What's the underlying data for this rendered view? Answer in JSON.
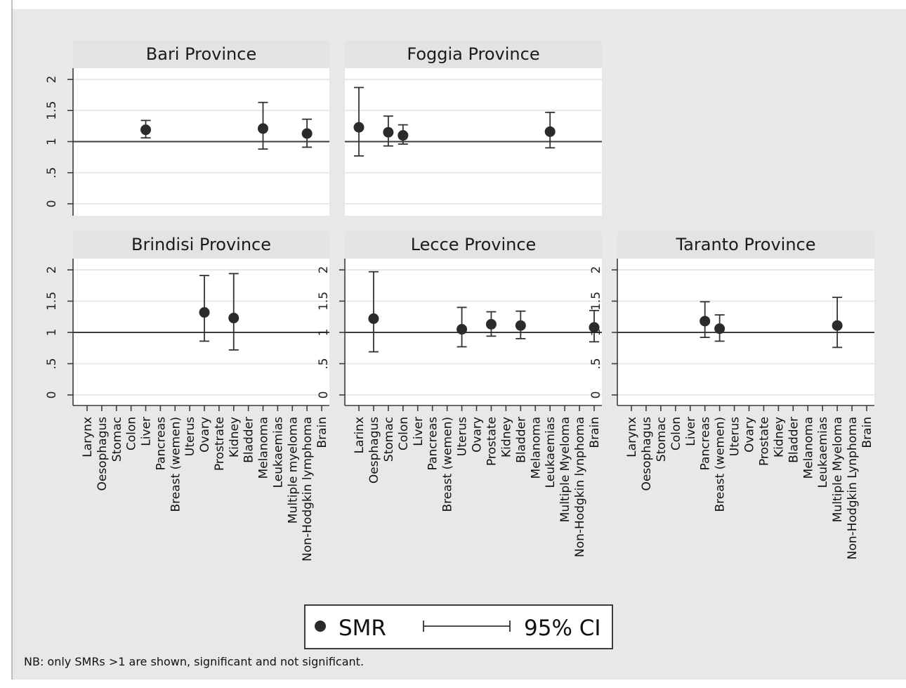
{
  "colors": {
    "background": "#e8e8e8",
    "panel": "#ffffff",
    "strip": "#e3e3e3",
    "marker": "#2b2b2b",
    "line": "#3c3c3c"
  },
  "chart_data": {
    "type": "scatter",
    "subtype": "point estimates with 95% confidence intervals, small multiples",
    "reference_line": 1,
    "ylim": [
      0,
      2.2
    ],
    "yticks": [
      0,
      0.5,
      1,
      1.5,
      2
    ],
    "ytick_labels": [
      "0",
      ".5",
      "1",
      "1.5",
      "2"
    ],
    "grid": true,
    "panels": [
      {
        "title": "Bari Province",
        "categories": [
          "Larynx",
          "Oesophagus",
          "Stomac",
          "Colon",
          "Liver",
          "Pancreas",
          "Breast (wemen)",
          "Uterus",
          "Ovary",
          "Prostrate",
          "Kidney",
          "Bladder",
          "Melanoma",
          "Leukaemias",
          "Multiple myeloma",
          "Non-Hodgkin lymphoma",
          "Brain"
        ],
        "points": [
          {
            "category": "Liver",
            "smr": 1.19,
            "lower": 1.06,
            "upper": 1.34
          },
          {
            "category": "Melanoma",
            "smr": 1.21,
            "lower": 0.88,
            "upper": 1.63
          },
          {
            "category": "Non-Hodgkin lymphoma",
            "smr": 1.13,
            "lower": 0.91,
            "upper": 1.36
          }
        ]
      },
      {
        "title": "Foggia Province",
        "categories": [
          "Larinx",
          "Oesphagus",
          "Stomac",
          "Colon",
          "Liver",
          "Pancreas",
          "Breast (wemen)",
          "Uterus",
          "Ovary",
          "Prostate",
          "Kidney",
          "Bladder",
          "Melanoma",
          "Leukaemias",
          "Multiple Myeloma",
          "Non-Hodgkin lynphoma",
          "Brain"
        ],
        "points": [
          {
            "category": "Larinx",
            "smr": 1.23,
            "lower": 0.77,
            "upper": 1.87
          },
          {
            "category": "Stomac",
            "smr": 1.15,
            "lower": 0.93,
            "upper": 1.41
          },
          {
            "category": "Colon",
            "smr": 1.1,
            "lower": 0.96,
            "upper": 1.27
          },
          {
            "category": "Leukaemias",
            "smr": 1.16,
            "lower": 0.9,
            "upper": 1.47
          }
        ]
      },
      {
        "title": "Brindisi Province",
        "categories": [
          "Larynx",
          "Oesophagus",
          "Stomac",
          "Colon",
          "Liver",
          "Pancreas",
          "Breast (wemen)",
          "Uterus",
          "Ovary",
          "Prostrate",
          "Kidney",
          "Bladder",
          "Melanoma",
          "Leukaemias",
          "Multiple myeloma",
          "Non-Hodgkin lymphoma",
          "Brain"
        ],
        "points": [
          {
            "category": "Ovary",
            "smr": 1.32,
            "lower": 0.86,
            "upper": 1.91
          },
          {
            "category": "Kidney",
            "smr": 1.23,
            "lower": 0.72,
            "upper": 1.94
          }
        ]
      },
      {
        "title": "Lecce Province",
        "categories": [
          "Larinx",
          "Oesphagus",
          "Stomac",
          "Colon",
          "Liver",
          "Pancreas",
          "Breast (wemen)",
          "Uterus",
          "Ovary",
          "Prostate",
          "Kidney",
          "Bladder",
          "Melanoma",
          "Leukaemias",
          "Multiple Myeloma",
          "Non-Hodgkin lynphoma",
          "Brain"
        ],
        "points": [
          {
            "category": "Oesphagus",
            "smr": 1.22,
            "lower": 0.69,
            "upper": 1.97
          },
          {
            "category": "Uterus",
            "smr": 1.05,
            "lower": 0.77,
            "upper": 1.4
          },
          {
            "category": "Prostate",
            "smr": 1.13,
            "lower": 0.94,
            "upper": 1.33
          },
          {
            "category": "Bladder",
            "smr": 1.11,
            "lower": 0.9,
            "upper": 1.34
          },
          {
            "category": "Brain",
            "smr": 1.08,
            "lower": 0.85,
            "upper": 1.35
          }
        ]
      },
      {
        "title": "Taranto Province",
        "categories": [
          "Larynx",
          "Oesophagus",
          "Stomac",
          "Colon",
          "Liver",
          "Pancreas",
          "Breast (wemen)",
          "Uterus",
          "Ovary",
          "Prostate",
          "Kidney",
          "Bladder",
          "Melanoma",
          "Leukaemias",
          "Multiple Myeloma",
          "Non-Hodgkin Lynphoma",
          "Brain"
        ],
        "points": [
          {
            "category": "Pancreas",
            "smr": 1.18,
            "lower": 0.92,
            "upper": 1.49
          },
          {
            "category": "Breast (wemen)",
            "smr": 1.06,
            "lower": 0.86,
            "upper": 1.28
          },
          {
            "category": "Multiple Myeloma",
            "smr": 1.11,
            "lower": 0.76,
            "upper": 1.56
          }
        ]
      }
    ],
    "legend": {
      "position": "bottom-center",
      "entries": [
        {
          "symbol": "dot",
          "label": "SMR"
        },
        {
          "symbol": "capped-line",
          "label": "95% CI"
        }
      ]
    },
    "note": "NB: only SMRs >1 are shown, significant and not significant."
  }
}
